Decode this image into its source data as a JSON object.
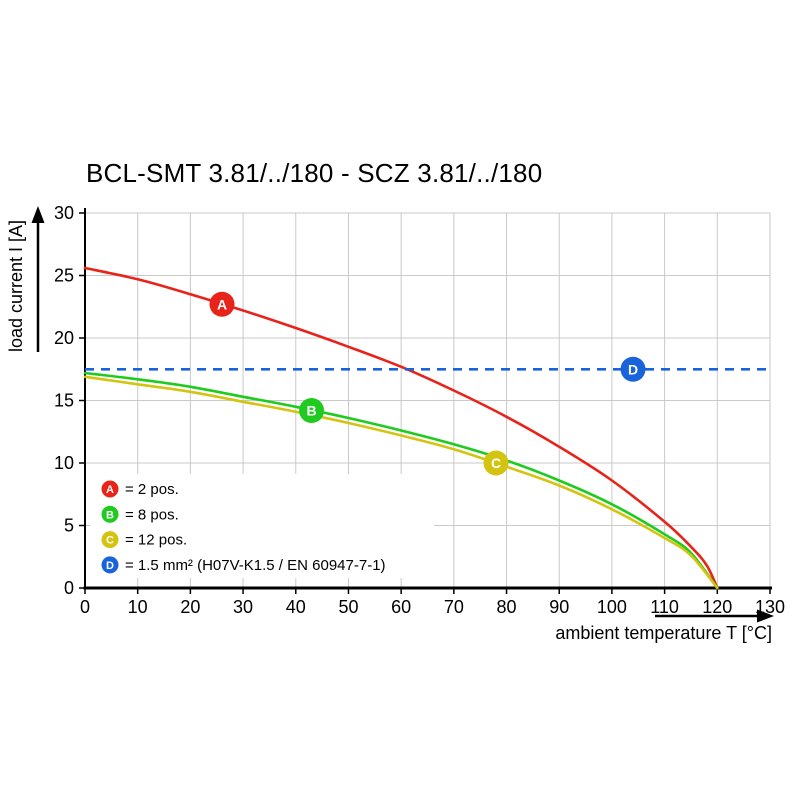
{
  "title": "BCL-SMT 3.81/../180 - SCZ 3.81/../180",
  "chart_data": {
    "type": "line",
    "title": "BCL-SMT 3.81/../180 - SCZ 3.81/../180",
    "xlabel": "ambient temperature T [°C]",
    "ylabel": "load current I [A]",
    "xlim": [
      0,
      130
    ],
    "ylim": [
      0,
      30
    ],
    "xticks": [
      0,
      10,
      20,
      30,
      40,
      50,
      60,
      70,
      80,
      90,
      100,
      110,
      120,
      130
    ],
    "yticks": [
      0,
      5,
      10,
      15,
      20,
      25,
      30
    ],
    "grid": true,
    "legend_position": "lower-left",
    "series": [
      {
        "id": "A",
        "label": "2 pos.",
        "color": "#e8231a",
        "style": "solid",
        "points": [
          [
            0,
            25.6
          ],
          [
            10,
            24.7
          ],
          [
            20,
            23.5
          ],
          [
            30,
            22.2
          ],
          [
            40,
            20.8
          ],
          [
            50,
            19.3
          ],
          [
            60,
            17.7
          ],
          [
            70,
            15.8
          ],
          [
            80,
            13.7
          ],
          [
            90,
            11.3
          ],
          [
            100,
            8.6
          ],
          [
            110,
            5.3
          ],
          [
            115,
            3.3
          ],
          [
            118,
            1.8
          ],
          [
            120,
            0
          ]
        ],
        "marker": {
          "x": 26,
          "y": 22.7
        }
      },
      {
        "id": "B",
        "label": "8 pos.",
        "color": "#1ecb1e",
        "style": "solid",
        "points": [
          [
            0,
            17.2
          ],
          [
            10,
            16.7
          ],
          [
            20,
            16.1
          ],
          [
            30,
            15.3
          ],
          [
            40,
            14.5
          ],
          [
            50,
            13.6
          ],
          [
            60,
            12.6
          ],
          [
            70,
            11.5
          ],
          [
            80,
            10.2
          ],
          [
            90,
            8.6
          ],
          [
            100,
            6.7
          ],
          [
            110,
            4.3
          ],
          [
            115,
            2.8
          ],
          [
            120,
            0
          ]
        ],
        "marker": {
          "x": 43,
          "y": 14.2
        }
      },
      {
        "id": "C",
        "label": "12 pos.",
        "color": "#d3c412",
        "style": "solid",
        "points": [
          [
            0,
            16.9
          ],
          [
            10,
            16.3
          ],
          [
            20,
            15.7
          ],
          [
            30,
            14.9
          ],
          [
            40,
            14.1
          ],
          [
            50,
            13.2
          ],
          [
            60,
            12.2
          ],
          [
            70,
            11.1
          ],
          [
            80,
            9.7
          ],
          [
            90,
            8.2
          ],
          [
            100,
            6.3
          ],
          [
            110,
            4.0
          ],
          [
            115,
            2.6
          ],
          [
            120,
            0
          ]
        ],
        "marker": {
          "x": 78,
          "y": 10.0
        }
      },
      {
        "id": "D",
        "label": "1.5 mm² (H07V-K1.5 / EN 60947-7-1)",
        "color": "#1a64db",
        "style": "dashed",
        "points": [
          [
            0,
            17.5
          ],
          [
            130,
            17.5
          ]
        ],
        "marker": {
          "x": 104,
          "y": 17.5
        }
      }
    ],
    "legend": [
      {
        "id": "A",
        "color": "#e8231a",
        "text": "= 2 pos."
      },
      {
        "id": "B",
        "color": "#1ecb1e",
        "text": "= 8 pos."
      },
      {
        "id": "C",
        "color": "#d3c412",
        "text": "= 12 pos."
      },
      {
        "id": "D",
        "color": "#1a64db",
        "text": "= 1.5 mm² (H07V-K1.5 / EN 60947-7-1)"
      }
    ]
  },
  "colors": {
    "grid": "#c9c9c9",
    "axis": "#000000",
    "background": "#ffffff"
  }
}
